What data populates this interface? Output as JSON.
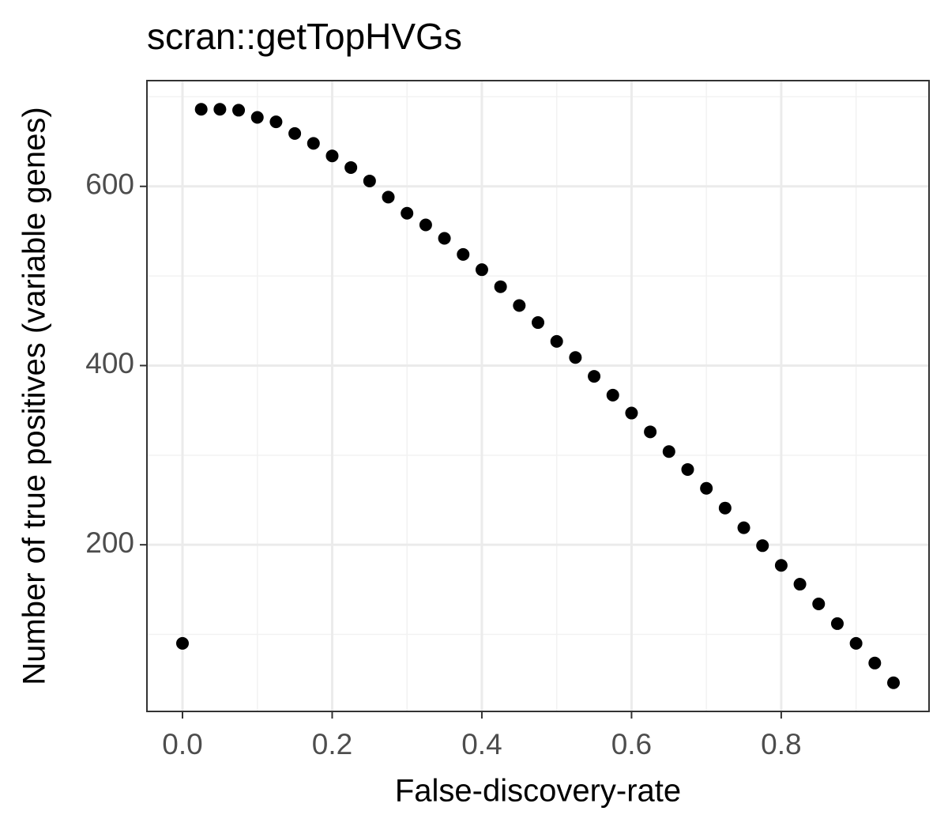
{
  "chart_data": {
    "type": "scatter",
    "title": "scran::getTopHVGs",
    "x_label": "False-discovery-rate",
    "y_label": "Number of true positives (variable genes)",
    "color": "#000000",
    "grid": true,
    "x": [
      0,
      0.025,
      0.05,
      0.075,
      0.1,
      0.125,
      0.15,
      0.175,
      0.2,
      0.225,
      0.25,
      0.275,
      0.3,
      0.325,
      0.35,
      0.375,
      0.4,
      0.425,
      0.45,
      0.475,
      0.5,
      0.525,
      0.55,
      0.575,
      0.6,
      0.625,
      0.65,
      0.675,
      0.7,
      0.725,
      0.75,
      0.775,
      0.8,
      0.825,
      0.85,
      0.875,
      0.9,
      0.925,
      0.95
    ],
    "values": [
      90,
      686,
      686,
      685,
      677,
      672,
      659,
      648,
      634,
      621,
      606,
      588,
      570,
      557,
      542,
      524,
      507,
      488,
      467,
      448,
      427,
      409,
      388,
      367,
      347,
      326,
      304,
      284,
      263,
      241,
      219,
      199,
      177,
      156,
      134,
      112,
      90,
      68,
      46
    ],
    "xlim": [
      -0.0475,
      0.9975
    ],
    "ylim": [
      14,
      718
    ],
    "xticks": [
      {
        "value": 0,
        "label": "0.0"
      },
      0.2,
      0.4,
      0.6,
      0.8
    ],
    "yticks": [
      200,
      400,
      600
    ],
    "x_minor_ticks": [
      0.1,
      0.3,
      0.5,
      0.7,
      0.9
    ],
    "y_minor_ticks": [
      100,
      300,
      500,
      700
    ]
  }
}
